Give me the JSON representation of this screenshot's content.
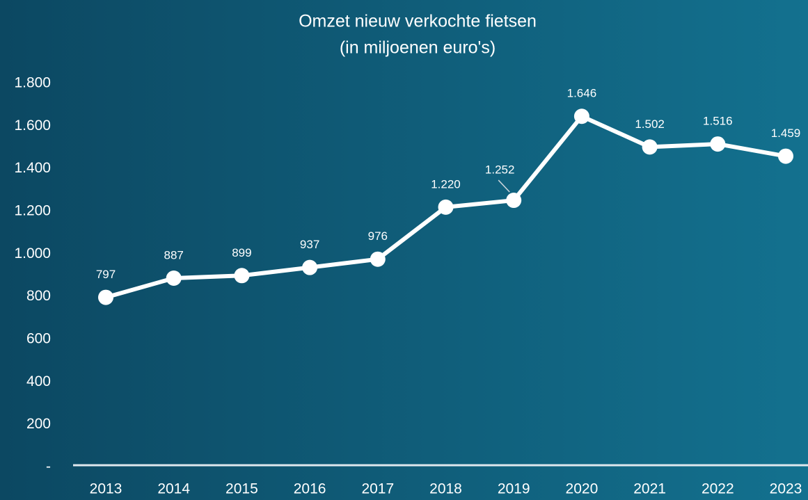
{
  "chart_data": {
    "type": "line",
    "title": "Omzet nieuw verkochte fietsen",
    "subtitle": "(in miljoenen euro's)",
    "categories": [
      "2013",
      "2014",
      "2015",
      "2016",
      "2017",
      "2018",
      "2019",
      "2020",
      "2021",
      "2022",
      "2023"
    ],
    "series": [
      {
        "color": "#ffffff",
        "values": [
          797,
          887,
          899,
          937,
          976,
          1220,
          1252,
          1646,
          1502,
          1516,
          1459
        ],
        "value_labels": [
          "797",
          "887",
          "899",
          "937",
          "976",
          "1.220",
          "1.252",
          "1.646",
          "1.502",
          "1.516",
          "1.459"
        ]
      }
    ],
    "ylim": [
      0,
      1800
    ],
    "yticks": [
      {
        "value": 0,
        "label": "-"
      },
      200,
      400,
      600,
      800,
      {
        "value": 1000,
        "label": "1.000"
      },
      {
        "value": 1200,
        "label": "1.200"
      },
      {
        "value": 1400,
        "label": "1.400"
      },
      {
        "value": 1600,
        "label": "1.600"
      },
      {
        "value": 1800,
        "label": "1.800"
      }
    ],
    "grid": false
  }
}
